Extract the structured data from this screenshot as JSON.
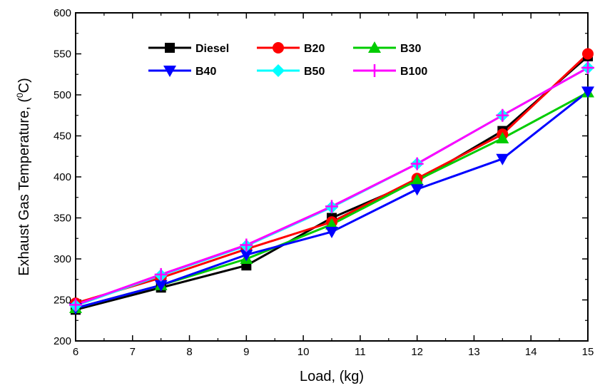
{
  "chart_data": {
    "type": "line",
    "xlabel": "Load, (kg)",
    "ylabel_main": "Exhaust Gas Temperature, (",
    "ylabel_super": "0",
    "ylabel_unit": "C)",
    "x": [
      6,
      7.5,
      9,
      10.5,
      12,
      13.5,
      15
    ],
    "xlim": [
      6,
      15
    ],
    "ylim": [
      200,
      600
    ],
    "x_ticks": [
      "6",
      "7",
      "8",
      "9",
      "10",
      "11",
      "12",
      "13",
      "14",
      "15"
    ],
    "y_ticks": [
      "200",
      "250",
      "300",
      "350",
      "400",
      "450",
      "500",
      "550",
      "600"
    ],
    "grid": false,
    "legend_position": "top-left",
    "series": [
      {
        "name": "Diesel",
        "color": "#000000",
        "marker": "square",
        "values": [
          238,
          265,
          292,
          350,
          395,
          456,
          547
        ]
      },
      {
        "name": "B20",
        "color": "#ff0000",
        "marker": "circle",
        "values": [
          246,
          277,
          312,
          345,
          398,
          452,
          550
        ]
      },
      {
        "name": "B30",
        "color": "#00cc00",
        "marker": "triangle-up",
        "values": [
          240,
          268,
          300,
          342,
          396,
          447,
          503
        ]
      },
      {
        "name": "B40",
        "color": "#0000ff",
        "marker": "triangle-down",
        "values": [
          240,
          268,
          305,
          333,
          385,
          422,
          504
        ]
      },
      {
        "name": "B50",
        "color": "#00ffff",
        "marker": "diamond",
        "values": [
          243,
          280,
          316,
          363,
          416,
          475,
          533
        ]
      },
      {
        "name": "B100",
        "color": "#ff00ff",
        "marker": "plus",
        "values": [
          244,
          281,
          317,
          364,
          416,
          475,
          533
        ]
      }
    ]
  }
}
